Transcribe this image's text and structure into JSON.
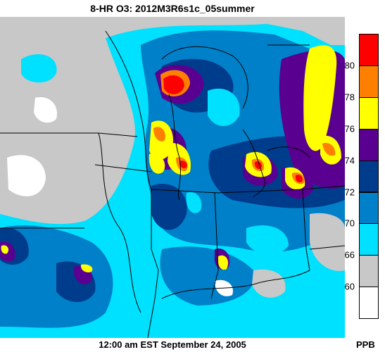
{
  "title": "8-HR O3: 2012M3R6s1c_05summer",
  "timestamp": "12:00 am EST September 24, 2005",
  "unit": "PPB",
  "legend": [
    {
      "label": "80",
      "color": "#ff0000"
    },
    {
      "label": "78",
      "color": "#ff8000"
    },
    {
      "label": "76",
      "color": "#ffff00"
    },
    {
      "label": "74",
      "color": "#5a0090"
    },
    {
      "label": "72",
      "color": "#003c8c"
    },
    {
      "label": "70",
      "color": "#0080c8"
    },
    {
      "label": "66",
      "color": "#00e0ff"
    },
    {
      "label": "60",
      "color": "#c8c8c8"
    },
    {
      "label": "",
      "color": "#ffffff"
    }
  ],
  "colors": {
    "land": "#c8c8c8",
    "water_low": "#00e0ff",
    "mid": "#0080c8",
    "high": "#003c8c",
    "purple": "#5a0090",
    "yellow": "#ffff00",
    "orange": "#ff8000",
    "red": "#ff0000",
    "boundary": "#000000"
  }
}
